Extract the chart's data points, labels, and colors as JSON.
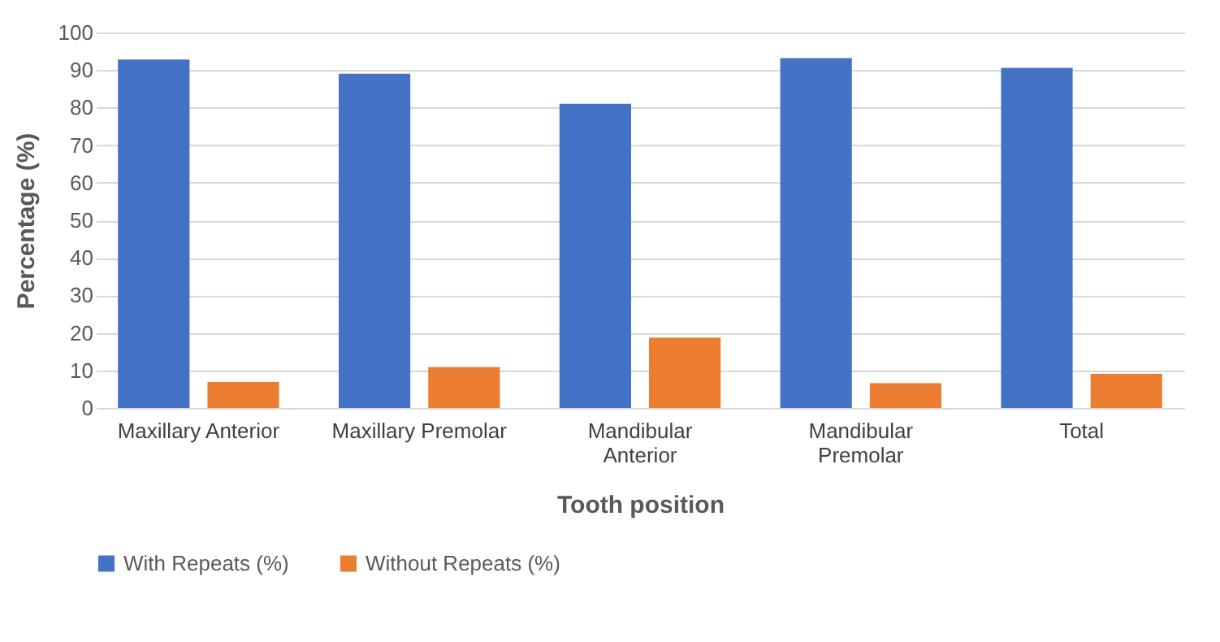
{
  "chart_data": {
    "type": "bar",
    "xlabel": "Tooth position",
    "ylabel": "Percentage (%)",
    "categories": [
      "Maxillary Anterior",
      "Maxillary Premolar",
      "Mandibular Anterior",
      "Mandibular Premolar",
      "Total"
    ],
    "series": [
      {
        "name": "With Repeats (%)",
        "color": "#4472c4",
        "values": [
          92.8,
          89.0,
          81.0,
          93.2,
          90.6
        ]
      },
      {
        "name": "Without Repeats (%)",
        "color": "#ed7d31",
        "values": [
          6.9,
          10.9,
          18.7,
          6.6,
          9.1
        ]
      }
    ],
    "ylim": [
      0,
      100
    ],
    "yticks": [
      0,
      10,
      20,
      30,
      40,
      50,
      60,
      70,
      80,
      90,
      100
    ],
    "grid": "y",
    "legend": "bottom"
  }
}
